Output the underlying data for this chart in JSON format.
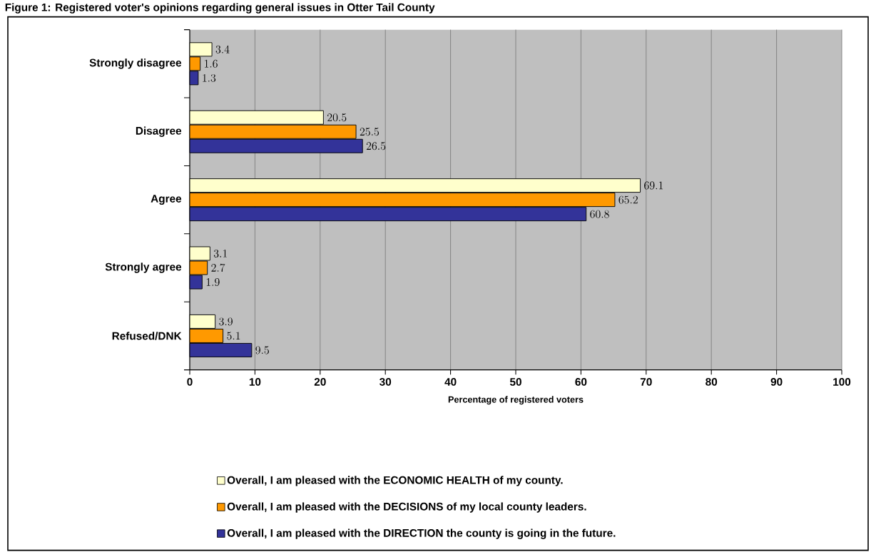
{
  "chart_data": {
    "type": "bar",
    "orientation": "horizontal",
    "title": "Figure 1: Registered voter's opinions regarding general issues in Otter Tail County",
    "xlabel": "Percentage of registered voters",
    "categories": [
      "Strongly disagree",
      "Disagree",
      "Agree",
      "Strongly agree",
      "Refused/DNK"
    ],
    "series": [
      {
        "name": "Overall, I am pleased with the ECONOMIC HEALTH of my county.",
        "color": "#ffffcc",
        "values": [
          3.4,
          20.5,
          69.1,
          3.1,
          3.9
        ]
      },
      {
        "name": "Overall, I am pleased with the DECISIONS of my local county leaders.",
        "color": "#ff9900",
        "values": [
          1.6,
          25.5,
          65.2,
          2.7,
          5.1
        ]
      },
      {
        "name": "Overall, I am pleased with the DIRECTION the county is going in the future.",
        "color": "#333399",
        "values": [
          1.3,
          26.5,
          60.8,
          1.9,
          9.5
        ]
      }
    ],
    "xlim": [
      0,
      100
    ],
    "xticks": [
      0,
      10,
      20,
      30,
      40,
      50,
      60,
      70,
      80,
      90,
      100
    ],
    "grid": "x",
    "legend": "bottom",
    "data_labels": true
  }
}
